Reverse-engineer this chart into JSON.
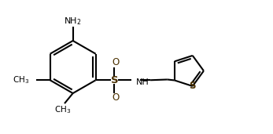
{
  "bg_color": "#ffffff",
  "line_color": "#000000",
  "bond_lw": 1.5,
  "fig_width": 3.47,
  "fig_height": 1.71,
  "dpi": 100,
  "xlim": [
    0.0,
    7.2
  ],
  "ylim": [
    -0.5,
    3.8
  ]
}
